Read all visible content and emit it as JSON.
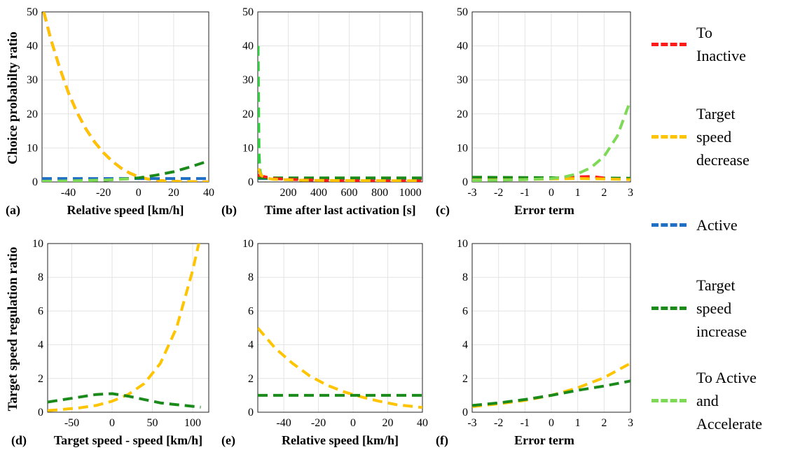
{
  "colors": {
    "to_inactive": "#ff1a1a",
    "target_speed_decrease": "#ffc400",
    "active": "#1f6fc5",
    "target_speed_increase": "#1a8a1a",
    "to_active_accelerate": "#7ed957",
    "neutral_green": "#2ecc40"
  },
  "ylabels": {
    "top": "Choice probabilty ratio",
    "bottom": "Target speed regulation ratio"
  },
  "legend": [
    {
      "key": "to_inactive",
      "label": "To\nInactive"
    },
    {
      "key": "target_speed_decrease",
      "label": "Target\nspeed\ndecrease"
    },
    {
      "key": "active",
      "label": "Active"
    },
    {
      "key": "target_speed_increase",
      "label": "Target\nspeed\nincrease"
    },
    {
      "key": "to_active_accelerate",
      "label": "To Active\nand\nAccelerate"
    }
  ],
  "chart_data": [
    {
      "id": "a",
      "type": "line",
      "tag": "(a)",
      "xlabel": "Relative speed [km/h]",
      "xlim": [
        -55,
        40
      ],
      "ylim": [
        0,
        50
      ],
      "xticks": [
        -40,
        -20,
        0,
        20,
        40
      ],
      "yticks": [
        0,
        10,
        20,
        30,
        40,
        50
      ],
      "series": [
        {
          "color_key": "to_inactive",
          "x": [
            -54,
            -50,
            -45,
            -40,
            -35,
            -30,
            -25,
            -20,
            -15,
            -10,
            -5,
            0,
            5,
            10,
            15,
            20,
            25,
            30,
            35,
            40
          ],
          "y": [
            50,
            42,
            33.6,
            26.3,
            20.4,
            15.6,
            11.7,
            8.6,
            6.1,
            4.1,
            2.6,
            1.5,
            0.9,
            0.5,
            0.3,
            0.2,
            0.1,
            0.1,
            0.05,
            0.03
          ]
        },
        {
          "color_key": "target_speed_decrease",
          "x": [
            -54,
            -50,
            -45,
            -40,
            -35,
            -30,
            -25,
            -20,
            -15,
            -10,
            -5,
            0,
            5,
            10,
            15,
            20,
            25,
            30,
            35,
            40
          ],
          "y": [
            50,
            42,
            33.6,
            26.3,
            20.4,
            15.6,
            11.7,
            8.6,
            6.1,
            4.1,
            2.6,
            1.5,
            0.9,
            0.5,
            0.3,
            0.2,
            0.1,
            0.1,
            0.05,
            0.03
          ]
        },
        {
          "color_key": "active",
          "x": [
            -55,
            40
          ],
          "y": [
            1,
            1
          ]
        },
        {
          "color_key": "target_speed_increase",
          "x": [
            -55,
            -40,
            -20,
            0,
            10,
            20,
            30,
            40
          ],
          "y": [
            0.15,
            0.25,
            0.5,
            1.2,
            2.0,
            3.0,
            4.5,
            6.2
          ]
        },
        {
          "color_key": "to_active_accelerate",
          "x": [
            -55,
            -40,
            -20,
            -5
          ],
          "y": [
            0.2,
            0.3,
            0.55,
            0.9
          ]
        }
      ]
    },
    {
      "id": "b",
      "type": "line",
      "tag": "(b)",
      "xlabel": "Time after last activation [s]",
      "xlim": [
        0,
        1080
      ],
      "ylim": [
        0,
        50
      ],
      "xticks": [
        200,
        400,
        600,
        800,
        1000
      ],
      "yticks": [
        0,
        10,
        20,
        30,
        40,
        50
      ],
      "series": [
        {
          "color_key": "to_active_accelerate",
          "x": [
            2,
            5,
            8,
            12,
            20,
            30
          ],
          "y": [
            40,
            25,
            10,
            4,
            2,
            1.5
          ]
        },
        {
          "color_key": "neutral_green",
          "x": [
            2,
            4,
            8,
            15,
            25
          ],
          "y": [
            40,
            22,
            8,
            3,
            1.8
          ]
        },
        {
          "color_key": "active",
          "x": [
            0,
            1080
          ],
          "y": [
            1,
            1
          ]
        },
        {
          "color_key": "target_speed_increase",
          "x": [
            0,
            1080
          ],
          "y": [
            1.2,
            1.2
          ]
        },
        {
          "color_key": "to_inactive",
          "x": [
            0,
            100,
            300,
            500,
            800,
            1080
          ],
          "y": [
            2.0,
            1.0,
            0.6,
            0.4,
            0.3,
            0.3
          ]
        },
        {
          "color_key": "target_speed_decrease",
          "x": [
            5,
            20,
            50,
            100,
            300,
            600,
            1080
          ],
          "y": [
            4,
            2,
            1.2,
            0.8,
            0.5,
            0.4,
            0.35
          ]
        }
      ]
    },
    {
      "id": "c",
      "type": "line",
      "tag": "(c)",
      "xlabel": "Error term",
      "xlim": [
        -3,
        3
      ],
      "ylim": [
        0,
        50
      ],
      "xticks": [
        -3,
        -2,
        -1,
        0,
        1,
        2,
        3
      ],
      "yticks": [
        0,
        10,
        20,
        30,
        40,
        50
      ],
      "series": [
        {
          "color_key": "target_speed_increase",
          "x": [
            -3,
            3
          ],
          "y": [
            1.4,
            1.1
          ]
        },
        {
          "color_key": "to_inactive",
          "x": [
            0.5,
            1,
            1.5,
            2
          ],
          "y": [
            1.2,
            1.5,
            1.6,
            1.2
          ]
        },
        {
          "color_key": "target_speed_decrease",
          "x": [
            -3,
            -1,
            0,
            1,
            2,
            3
          ],
          "y": [
            0.5,
            0.7,
            0.9,
            1.0,
            0.9,
            0.7
          ]
        },
        {
          "color_key": "to_active_accelerate",
          "x": [
            -3,
            -2,
            -1,
            0,
            0.5,
            1,
            1.5,
            2,
            2.5,
            3
          ],
          "y": [
            0.4,
            0.5,
            0.7,
            1.0,
            1.5,
            2.4,
            4.2,
            7.5,
            13.5,
            24
          ]
        }
      ]
    },
    {
      "id": "d",
      "type": "line",
      "tag": "(d)",
      "xlabel": "Target speed - speed [km/h]",
      "xlim": [
        -80,
        120
      ],
      "ylim": [
        0,
        10
      ],
      "xticks": [
        -50,
        0,
        50,
        100
      ],
      "yticks": [
        0,
        2,
        4,
        6,
        8,
        10
      ],
      "series": [
        {
          "color_key": "target_speed_decrease",
          "x": [
            -80,
            -60,
            -40,
            -20,
            0,
            20,
            40,
            60,
            80,
            100,
            110
          ],
          "y": [
            0.1,
            0.17,
            0.26,
            0.4,
            0.65,
            1.05,
            1.7,
            2.9,
            5.0,
            8.4,
            10.5
          ]
        },
        {
          "color_key": "target_speed_increase",
          "x": [
            -80,
            -60,
            -40,
            -20,
            0,
            20,
            40,
            60,
            80,
            110
          ],
          "y": [
            0.6,
            0.75,
            0.9,
            1.05,
            1.1,
            0.95,
            0.75,
            0.55,
            0.45,
            0.3
          ]
        }
      ]
    },
    {
      "id": "e",
      "type": "line",
      "tag": "(e)",
      "xlabel": "Relative speed [km/h]",
      "xlim": [
        -55,
        40
      ],
      "ylim": [
        0,
        10
      ],
      "xticks": [
        -40,
        -20,
        0,
        20,
        40
      ],
      "yticks": [
        0,
        2,
        4,
        6,
        8,
        10
      ],
      "series": [
        {
          "color_key": "target_speed_decrease",
          "x": [
            -55,
            -45,
            -35,
            -25,
            -15,
            -5,
            5,
            15,
            25,
            40
          ],
          "y": [
            5.0,
            3.8,
            2.9,
            2.15,
            1.6,
            1.2,
            0.9,
            0.65,
            0.45,
            0.28
          ]
        },
        {
          "color_key": "target_speed_increase",
          "x": [
            -55,
            40
          ],
          "y": [
            1,
            1
          ]
        }
      ]
    },
    {
      "id": "f",
      "type": "line",
      "tag": "(f)",
      "xlabel": "Error term",
      "xlim": [
        -3,
        3
      ],
      "ylim": [
        0,
        10
      ],
      "xticks": [
        -3,
        -2,
        -1,
        0,
        1,
        2,
        3
      ],
      "yticks": [
        0,
        2,
        4,
        6,
        8,
        10
      ],
      "series": [
        {
          "color_key": "target_speed_decrease",
          "x": [
            -3,
            -2,
            -1,
            0,
            1,
            2,
            3
          ],
          "y": [
            0.33,
            0.5,
            0.7,
            1.0,
            1.45,
            2.05,
            2.9
          ]
        },
        {
          "color_key": "target_speed_increase",
          "x": [
            -3,
            -2,
            -1,
            0,
            1,
            2,
            3
          ],
          "y": [
            0.4,
            0.55,
            0.75,
            1.0,
            1.3,
            1.55,
            1.85
          ]
        }
      ]
    }
  ]
}
